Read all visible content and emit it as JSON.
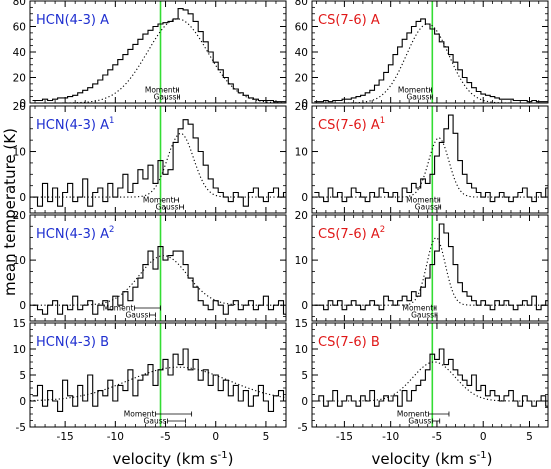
{
  "figure": {
    "ylabel": "mean temperature (K)",
    "xlabel_left": "velocity (km s",
    "xlabel_right": "velocity (km s",
    "xlabel_exp": "-1",
    "xlabel_close": ")",
    "colors": {
      "blue": "#1f2fd0",
      "red": "#e01818",
      "green": "#33dd33",
      "black": "#000000"
    }
  },
  "chart_data": [
    {
      "type": "line",
      "molecule": "HCN(4-3)",
      "suffix": "A",
      "sup": "",
      "color": "blue",
      "xlim": [
        -18.5,
        7
      ],
      "ylim": [
        0,
        80
      ],
      "yticks": [
        0,
        20,
        40,
        60,
        80
      ],
      "xticks": [
        -15,
        -10,
        -5,
        0,
        5
      ],
      "v_start": -18,
      "v_step": 0.5,
      "green_v": -5.5,
      "values": [
        2,
        2,
        3,
        2,
        3,
        4,
        4,
        5,
        6,
        8,
        10,
        12,
        15,
        18,
        22,
        26,
        30,
        34,
        38,
        42,
        46,
        50,
        54,
        57,
        60,
        62,
        63,
        64,
        66,
        74,
        73,
        70,
        64,
        56,
        48,
        40,
        32,
        26,
        20,
        15,
        11,
        8,
        6,
        4,
        3,
        2,
        2,
        2,
        1,
        1,
        1
      ],
      "fit": [
        {
          "amp": 66,
          "center": -3.8,
          "sigma": 3.0
        }
      ],
      "moment": {
        "label": "Moment",
        "center": -3.8,
        "halfwidth": 0.1
      },
      "gauss": {
        "label": "Gauss",
        "center": -3.7,
        "halfwidth": 0.1
      }
    },
    {
      "type": "line",
      "molecule": "CS(7-6)",
      "suffix": "A",
      "sup": "",
      "color": "red",
      "xlim": [
        -18.5,
        7
      ],
      "ylim": [
        0,
        80
      ],
      "yticks": [
        0,
        20,
        40,
        60,
        80
      ],
      "xticks": [
        -15,
        -10,
        -5,
        0,
        5
      ],
      "v_start": -18,
      "v_step": 0.5,
      "green_v": -5.5,
      "values": [
        1,
        1,
        2,
        1,
        2,
        2,
        3,
        3,
        4,
        5,
        6,
        8,
        10,
        14,
        18,
        24,
        30,
        38,
        44,
        50,
        55,
        60,
        64,
        66,
        62,
        58,
        54,
        48,
        44,
        38,
        32,
        26,
        20,
        16,
        12,
        9,
        7,
        6,
        5,
        4,
        3,
        3,
        3,
        2,
        2,
        2,
        1,
        2,
        1,
        1,
        1
      ],
      "fit": [
        {
          "amp": 62,
          "center": -6.0,
          "sigma": 2.3
        }
      ],
      "moment": {
        "label": "Moment",
        "center": -5.7,
        "halfwidth": 0.1
      },
      "gauss": {
        "label": "Gauss",
        "center": -5.6,
        "halfwidth": 0.1
      }
    },
    {
      "type": "line",
      "molecule": "HCN(4-3)",
      "suffix": "A",
      "sup": "1",
      "color": "blue",
      "xlim": [
        -18.5,
        7
      ],
      "ylim": [
        -3.5,
        20
      ],
      "yticks": [
        0,
        10,
        20
      ],
      "xticks": [
        -15,
        -10,
        -5,
        0,
        5
      ],
      "v_start": -18,
      "v_step": 0.5,
      "green_v": -5.5,
      "values": [
        0,
        -2,
        3,
        -1,
        2,
        -2,
        1,
        3,
        -1,
        0,
        4,
        -2,
        1,
        2,
        -1,
        3,
        0,
        2,
        5,
        1,
        3,
        6,
        4,
        7,
        3,
        8,
        5,
        6,
        12,
        15,
        17,
        16,
        13,
        10,
        7,
        4,
        2,
        1,
        0,
        -1,
        1,
        0,
        -2,
        1,
        2,
        0,
        -1,
        1,
        2,
        0,
        1
      ],
      "fit": [
        {
          "amp": 14,
          "center": -3.5,
          "sigma": 1.3
        }
      ],
      "moment": {
        "label": "Moment",
        "center": -3.9,
        "halfwidth": 0.2
      },
      "gauss": {
        "label": "Gauss",
        "center": -3.4,
        "halfwidth": 0.2
      }
    },
    {
      "type": "line",
      "molecule": "CS(7-6)",
      "suffix": "A",
      "sup": "1",
      "color": "red",
      "xlim": [
        -18.5,
        7
      ],
      "ylim": [
        -3.5,
        20
      ],
      "yticks": [
        0,
        10,
        20
      ],
      "xticks": [
        -15,
        -10,
        -5,
        0,
        5
      ],
      "v_start": -18,
      "v_step": 0.5,
      "green_v": -5.5,
      "values": [
        1,
        0,
        -1,
        2,
        0,
        1,
        -1,
        0,
        2,
        1,
        0,
        -1,
        1,
        0,
        2,
        1,
        0,
        1,
        -1,
        2,
        1,
        3,
        2,
        4,
        3,
        5,
        9,
        12,
        15,
        18,
        14,
        8,
        5,
        3,
        2,
        1,
        0,
        1,
        -1,
        0,
        1,
        0,
        -1,
        0,
        1,
        2,
        0,
        -1,
        1,
        0,
        2
      ],
      "fit": [
        {
          "amp": 13,
          "center": -4.8,
          "sigma": 1.1
        }
      ],
      "moment": {
        "label": "Moment",
        "center": -4.8,
        "halfwidth": 0.1
      },
      "gauss": {
        "label": "Gauss",
        "center": -4.7,
        "halfwidth": 0.1
      }
    },
    {
      "type": "line",
      "molecule": "HCN(4-3)",
      "suffix": "A",
      "sup": "2",
      "color": "blue",
      "xlim": [
        -18.5,
        7
      ],
      "ylim": [
        -3.5,
        20
      ],
      "yticks": [
        0,
        10,
        20
      ],
      "xticks": [
        -15,
        -10,
        -5,
        0,
        5
      ],
      "v_start": -18,
      "v_step": 0.5,
      "green_v": -5.5,
      "values": [
        0,
        -1,
        -2,
        0,
        1,
        -2,
        0,
        -1,
        2,
        -1,
        0,
        1,
        -2,
        0,
        1,
        -1,
        2,
        0,
        3,
        1,
        4,
        6,
        9,
        12,
        8,
        13,
        10,
        11,
        12,
        12,
        9,
        6,
        4,
        1,
        0,
        -1,
        1,
        0,
        -2,
        0,
        1,
        -1,
        0,
        1,
        -1,
        0,
        2,
        -1,
        0,
        1,
        -2
      ],
      "fit": [
        {
          "amp": 11,
          "center": -5.2,
          "sigma": 2.4
        }
      ],
      "moment": {
        "label": "Moment",
        "center": -6.8,
        "halfwidth": 1.3
      },
      "gauss": {
        "label": "Gauss",
        "center": -6.3,
        "halfwidth": 0.3
      }
    },
    {
      "type": "line",
      "molecule": "CS(7-6)",
      "suffix": "A",
      "sup": "2",
      "color": "red",
      "xlim": [
        -18.5,
        7
      ],
      "ylim": [
        -3.5,
        20
      ],
      "yticks": [
        0,
        10,
        20
      ],
      "xticks": [
        -15,
        -10,
        -5,
        0,
        5
      ],
      "v_start": -18,
      "v_step": 0.5,
      "green_v": -5.5,
      "values": [
        0,
        0,
        -1,
        1,
        0,
        1,
        -1,
        0,
        1,
        0,
        -1,
        0,
        1,
        0,
        -1,
        2,
        1,
        0,
        1,
        2,
        1,
        3,
        2,
        4,
        6,
        9,
        12,
        18,
        16,
        13,
        9,
        5,
        3,
        2,
        1,
        0,
        1,
        0,
        -1,
        1,
        0,
        1,
        0,
        -1,
        0,
        1,
        0,
        2,
        -1,
        0,
        1
      ],
      "fit": [
        {
          "amp": 15,
          "center": -5.1,
          "sigma": 1.0
        }
      ],
      "moment": {
        "label": "Moment",
        "center": -5.2,
        "halfwidth": 0.1
      },
      "gauss": {
        "label": "Gauss",
        "center": -5.1,
        "halfwidth": 0.1
      }
    },
    {
      "type": "line",
      "molecule": "HCN(4-3)",
      "suffix": "B",
      "sup": "",
      "color": "blue",
      "xlim": [
        -18.5,
        7
      ],
      "ylim": [
        -5,
        15
      ],
      "yticks": [
        -5,
        0,
        5,
        10,
        15
      ],
      "xticks": [
        -15,
        -10,
        -5,
        0,
        5
      ],
      "v_start": -18,
      "v_step": 0.5,
      "green_v": -5.5,
      "values": [
        1,
        3,
        -1,
        2,
        0,
        -2,
        4,
        1,
        -1,
        3,
        0,
        5,
        -1,
        2,
        1,
        4,
        0,
        3,
        2,
        6,
        1,
        4,
        5,
        7,
        3,
        6,
        8,
        5,
        9,
        7,
        10,
        6,
        8,
        4,
        6,
        3,
        5,
        2,
        4,
        1,
        3,
        0,
        2,
        -1,
        1,
        3,
        0,
        -2,
        1,
        2,
        0
      ],
      "fit": [
        {
          "amp": 6.5,
          "center": -3.7,
          "sigma": 5.0
        }
      ],
      "moment": {
        "label": "Moment",
        "center": -4.2,
        "halfwidth": 1.8
      },
      "gauss": {
        "label": "Gauss",
        "center": -3.9,
        "halfwidth": 0.9
      }
    },
    {
      "type": "line",
      "molecule": "CS(7-6)",
      "suffix": "B",
      "sup": "",
      "color": "red",
      "xlim": [
        -18.5,
        7
      ],
      "ylim": [
        -5,
        15
      ],
      "yticks": [
        -5,
        0,
        5,
        10,
        15
      ],
      "xticks": [
        -15,
        -10,
        -5,
        0,
        5
      ],
      "v_start": -18,
      "v_step": 0.5,
      "green_v": -5.5,
      "values": [
        0,
        1,
        -1,
        0,
        2,
        -1,
        0,
        1,
        0,
        -1,
        1,
        0,
        2,
        -1,
        0,
        1,
        0,
        1,
        -1,
        2,
        0,
        2,
        3,
        4,
        6,
        9,
        8,
        10,
        7,
        8,
        6,
        5,
        4,
        3,
        5,
        2,
        3,
        1,
        2,
        1,
        0,
        1,
        2,
        0,
        -1,
        1,
        0,
        -1,
        0,
        1,
        -1
      ],
      "fit": [
        {
          "amp": 7.5,
          "center": -5.3,
          "sigma": 2.3
        }
      ],
      "moment": {
        "label": "Moment",
        "center": -4.8,
        "halfwidth": 1.1
      },
      "gauss": {
        "label": "Gauss",
        "center": -5.1,
        "halfwidth": 0.4
      }
    }
  ]
}
